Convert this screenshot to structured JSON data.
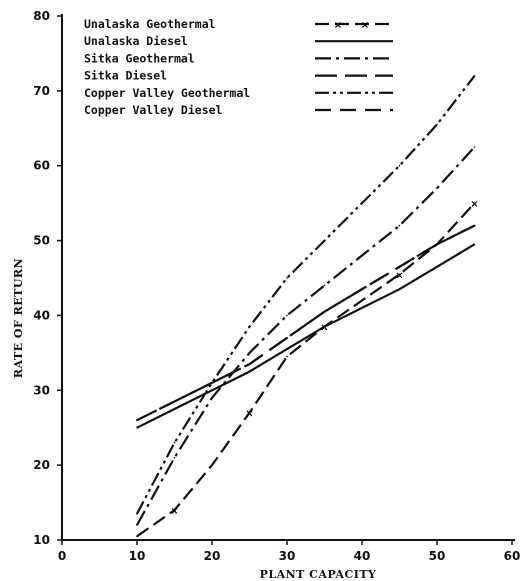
{
  "chart_data": {
    "type": "line",
    "title": "",
    "xlabel": "PLANT CAPACITY",
    "ylabel": "RATE OF RETURN",
    "xlim": [
      0,
      60
    ],
    "ylim": [
      10,
      80
    ],
    "x_ticks": [
      "0",
      "10",
      "20",
      "30",
      "40",
      "50",
      "60"
    ],
    "y_ticks": [
      "10",
      "20",
      "30",
      "40",
      "50",
      "60",
      "70",
      "80"
    ],
    "grid": false,
    "legend_position": "top-left",
    "series": [
      {
        "name": "Unalaska Geothermal",
        "style": "dash-x",
        "x": [
          10,
          15,
          20,
          25,
          30,
          35,
          40,
          45,
          50,
          55
        ],
        "y": [
          10.5,
          14,
          20,
          27,
          34.5,
          38.5,
          42,
          45.5,
          49.5,
          55
        ]
      },
      {
        "name": "Unalaska Diesel",
        "style": "solid",
        "x": [
          10,
          15,
          20,
          25,
          30,
          35,
          40,
          45,
          50,
          55
        ],
        "y": [
          25,
          27.5,
          30,
          32.5,
          35.5,
          38.5,
          41,
          43.5,
          46.5,
          49.5
        ]
      },
      {
        "name": "Sitka Geothermal",
        "style": "dash-dot",
        "x": [
          10,
          15,
          20,
          25,
          30,
          35,
          40,
          45,
          50,
          55
        ],
        "y": [
          12,
          21,
          29,
          35,
          40,
          44,
          48,
          52,
          57,
          62.5
        ]
      },
      {
        "name": "Sitka Diesel",
        "style": "long-dash",
        "x": [
          10,
          15,
          20,
          25,
          30,
          35,
          40,
          45,
          50,
          55
        ],
        "y": [
          26,
          28.5,
          31,
          33.5,
          37,
          40.5,
          43.5,
          46.5,
          49.5,
          52
        ]
      },
      {
        "name": "Copper Valley Geothermal",
        "style": "dash-dot-dot",
        "x": [
          10,
          15,
          20,
          25,
          30,
          35,
          40,
          45,
          50,
          55
        ],
        "y": [
          13.5,
          23,
          31,
          38.5,
          45,
          50,
          55,
          60,
          65.5,
          72
        ]
      },
      {
        "name": "Copper Valley Diesel",
        "style": "dashed",
        "x": [
          10,
          15,
          20,
          25,
          30,
          35,
          40,
          45,
          50,
          55
        ],
        "y": [
          26,
          28.5,
          31,
          33.5,
          37,
          40.5,
          43.5,
          46.5,
          49.5,
          52
        ]
      }
    ]
  }
}
